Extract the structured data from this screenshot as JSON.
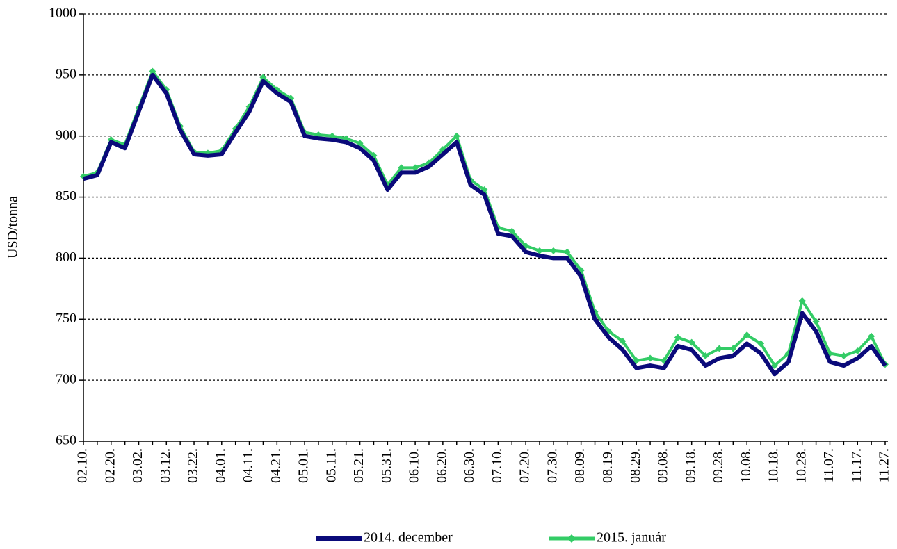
{
  "chart_data": {
    "type": "line",
    "y_label": "USD/tonna",
    "categories": [
      "02.10.",
      null,
      "02.20.",
      null,
      "03.02.",
      null,
      "03.12.",
      null,
      "03.22.",
      null,
      "04.01.",
      null,
      "04.11.",
      null,
      "04.21.",
      null,
      "05.01.",
      null,
      "05.11.",
      null,
      "05.21.",
      null,
      "05.31.",
      null,
      "06.10.",
      null,
      "06.20.",
      null,
      "06.30.",
      null,
      "07.10.",
      null,
      "07.20.",
      null,
      "07.30.",
      null,
      "08.09.",
      null,
      "08.19.",
      null,
      "08.29.",
      null,
      "09.08.",
      null,
      "09.18.",
      null,
      "09.28.",
      null,
      "10.08.",
      null,
      "10.18.",
      null,
      "10.28.",
      null,
      "11.07.",
      null,
      "11.17.",
      null,
      "11.27."
    ],
    "series": [
      {
        "name": "2014. december",
        "color": "#0a0a7a",
        "values": [
          865,
          868,
          895,
          890,
          920,
          950,
          935,
          905,
          885,
          884,
          885,
          903,
          920,
          945,
          935,
          928,
          900,
          898,
          897,
          895,
          890,
          880,
          856,
          870,
          870,
          875,
          885,
          895,
          860,
          852,
          820,
          818,
          805,
          802,
          800,
          800,
          785,
          750,
          735,
          725,
          710,
          712,
          710,
          728,
          725,
          712,
          718,
          720,
          730,
          722,
          705,
          715,
          755,
          740,
          715,
          712,
          718,
          728,
          712
        ]
      },
      {
        "name": "2015. január",
        "color": "#33cc66",
        "marker": "diamond",
        "values": [
          867,
          870,
          897,
          893,
          923,
          953,
          938,
          908,
          887,
          886,
          888,
          906,
          924,
          948,
          938,
          931,
          903,
          901,
          900,
          898,
          894,
          884,
          860,
          874,
          874,
          878,
          889,
          900,
          864,
          856,
          825,
          822,
          810,
          806,
          806,
          805,
          790,
          756,
          740,
          732,
          716,
          718,
          716,
          735,
          731,
          720,
          726,
          726,
          737,
          730,
          712,
          722,
          765,
          748,
          722,
          720,
          724,
          736,
          713
        ]
      }
    ],
    "ylim": [
      650,
      1000
    ],
    "yticks": [
      650,
      700,
      750,
      800,
      850,
      900,
      950,
      1000
    ],
    "grid": true
  }
}
